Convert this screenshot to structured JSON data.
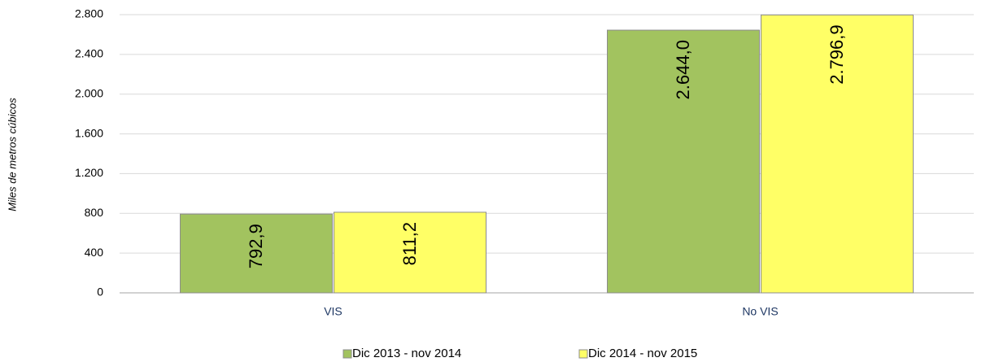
{
  "chart_data": {
    "type": "bar",
    "y_label": "Miles de metros cúbicos",
    "categories": [
      "VIS",
      "No VIS"
    ],
    "series": [
      {
        "name": "Dic 2013 - nov 2014",
        "color": "#a2c35f",
        "values": [
          792.9,
          2644.0
        ],
        "value_labels": [
          "792,9",
          "2.644,0"
        ]
      },
      {
        "name": "Dic 2014 - nov 2015",
        "color": "#ffff66",
        "values": [
          811.2,
          2796.9
        ],
        "value_labels": [
          "811,2",
          "2.796,9"
        ]
      }
    ],
    "ylim": [
      0,
      2800
    ],
    "yticks": [
      0,
      400,
      800,
      {
        "value": 1200,
        "label": "1.200"
      },
      {
        "value": 1600,
        "label": "1.600"
      },
      {
        "value": 2000,
        "label": "2.000"
      },
      {
        "value": 2400,
        "label": "2.400"
      },
      {
        "value": 2800,
        "label": "2.800"
      }
    ],
    "grid": true,
    "legend": "bottom"
  }
}
